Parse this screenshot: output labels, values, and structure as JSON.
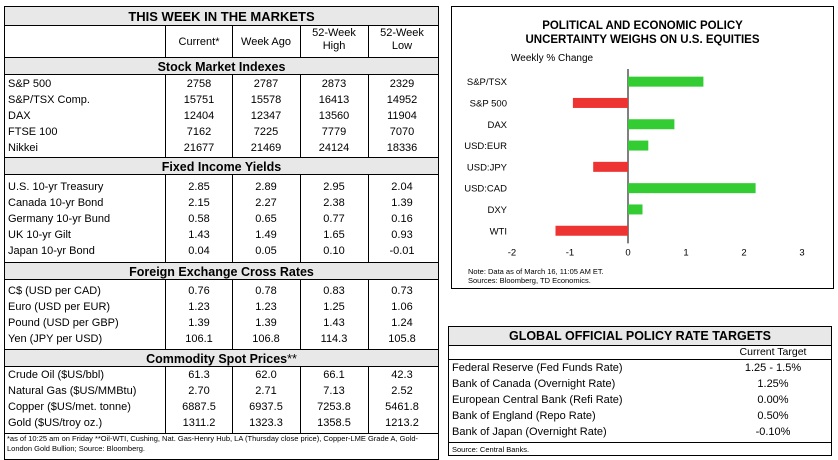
{
  "markets": {
    "title": "THIS WEEK IN THE MARKETS",
    "columns": [
      "Current*",
      "Week Ago",
      "52-Week High",
      "52-Week Low"
    ],
    "sections": [
      {
        "title": "Stock Market Indexes",
        "title_suffix": "",
        "rows": [
          {
            "label": "S&P 500",
            "current": "2758",
            "week_ago": "2787",
            "high": "2873",
            "low": "2329"
          },
          {
            "label": "S&P/TSX Comp.",
            "current": "15751",
            "week_ago": "15578",
            "high": "16413",
            "low": "14952"
          },
          {
            "label": "DAX",
            "current": "12404",
            "week_ago": "12347",
            "high": "13560",
            "low": "11904"
          },
          {
            "label": "FTSE 100",
            "current": "7162",
            "week_ago": "7225",
            "high": "7779",
            "low": "7070"
          },
          {
            "label": "Nikkei",
            "current": "21677",
            "week_ago": "21469",
            "high": "24124",
            "low": "18336"
          }
        ]
      },
      {
        "title": "Fixed Income Yields",
        "title_suffix": "",
        "rows": [
          {
            "label": "U.S. 10-yr Treasury",
            "current": "2.85",
            "week_ago": "2.89",
            "high": "2.95",
            "low": "2.04"
          },
          {
            "label": "Canada 10-yr Bond",
            "current": "2.15",
            "week_ago": "2.27",
            "high": "2.38",
            "low": "1.39"
          },
          {
            "label": "Germany 10-yr Bund",
            "current": "0.58",
            "week_ago": "0.65",
            "high": "0.77",
            "low": "0.16"
          },
          {
            "label": "UK 10-yr Gilt",
            "current": "1.43",
            "week_ago": "1.49",
            "high": "1.65",
            "low": "0.93"
          },
          {
            "label": "Japan 10-yr Bond",
            "current": "0.04",
            "week_ago": "0.05",
            "high": "0.10",
            "low": "-0.01"
          }
        ]
      },
      {
        "title": "Foreign Exchange Cross Rates",
        "title_suffix": "",
        "rows": [
          {
            "label": "C$ (USD per CAD)",
            "current": "0.76",
            "week_ago": "0.78",
            "high": "0.83",
            "low": "0.73"
          },
          {
            "label": "Euro (USD per EUR)",
            "current": "1.23",
            "week_ago": "1.23",
            "high": "1.25",
            "low": "1.06"
          },
          {
            "label": "Pound (USD per GBP)",
            "current": "1.39",
            "week_ago": "1.39",
            "high": "1.43",
            "low": "1.24"
          },
          {
            "label": "Yen (JPY per USD)",
            "current": "106.1",
            "week_ago": "106.8",
            "high": "114.3",
            "low": "105.8"
          }
        ]
      },
      {
        "title": "Commodity Spot Prices",
        "title_suffix": "**",
        "rows": [
          {
            "label": "Crude Oil ($US/bbl)",
            "current": "61.3",
            "week_ago": "62.0",
            "high": "66.1",
            "low": "42.3"
          },
          {
            "label": "Natural Gas ($US/MMBtu)",
            "current": "2.70",
            "week_ago": "2.71",
            "high": "7.13",
            "low": "2.52"
          },
          {
            "label": "Copper ($US/met. tonne)",
            "current": "6887.5",
            "week_ago": "6937.5",
            "high": "7253.8",
            "low": "5461.8"
          },
          {
            "label": "Gold ($US/troy oz.)",
            "current": "1311.2",
            "week_ago": "1323.3",
            "high": "1358.5",
            "low": "1213.2"
          }
        ]
      }
    ],
    "footnote": "*as of 10:25 am on Friday **Oil-WTI, Cushing, Nat. Gas-Henry Hub, LA (Thursday close price), Copper-LME Grade A, Gold-London Gold Bullion; Source: Bloomberg."
  },
  "chart_data": {
    "type": "bar",
    "orientation": "horizontal",
    "title": "POLITICAL AND ECONOMIC POLICY UNCERTAINTY WEIGHS ON U.S. EQUITIES",
    "title_lines": [
      "POLITICAL AND ECONOMIC POLICY",
      "UNCERTAINTY WEIGHS ON U.S. EQUITIES"
    ],
    "subtitle": "Weekly % Change",
    "categories": [
      "S&P/TSX",
      "S&P 500",
      "DAX",
      "USD:EUR",
      "USD:JPY",
      "USD:CAD",
      "DXY",
      "WTI"
    ],
    "values": [
      1.3,
      -0.95,
      0.8,
      0.35,
      -0.6,
      2.2,
      0.25,
      -1.25
    ],
    "xlim": [
      -2,
      3
    ],
    "xticks": [
      "-2",
      "-1",
      "0",
      "1",
      "2",
      "3"
    ],
    "colors": {
      "positive": "#33cc33",
      "negative": "#ee3333"
    },
    "note_lines": [
      "Note: Data as of March 16, 11:05 AM ET.",
      "Sources: Bloomberg, TD Economics."
    ]
  },
  "policy": {
    "title": "GLOBAL OFFICIAL POLICY RATE TARGETS",
    "col_header": "Current Target",
    "rows": [
      {
        "label": "Federal Reserve (Fed Funds Rate)",
        "value": "1.25 - 1.5%"
      },
      {
        "label": "Bank of Canada (Overnight Rate)",
        "value": "1.25%"
      },
      {
        "label": "European Central Bank (Refi Rate)",
        "value": "0.00%"
      },
      {
        "label": "Bank of England (Repo Rate)",
        "value": "0.50%"
      },
      {
        "label": "Bank of Japan (Overnight Rate)",
        "value": "-0.10%"
      }
    ],
    "source": "Source: Central Banks."
  }
}
